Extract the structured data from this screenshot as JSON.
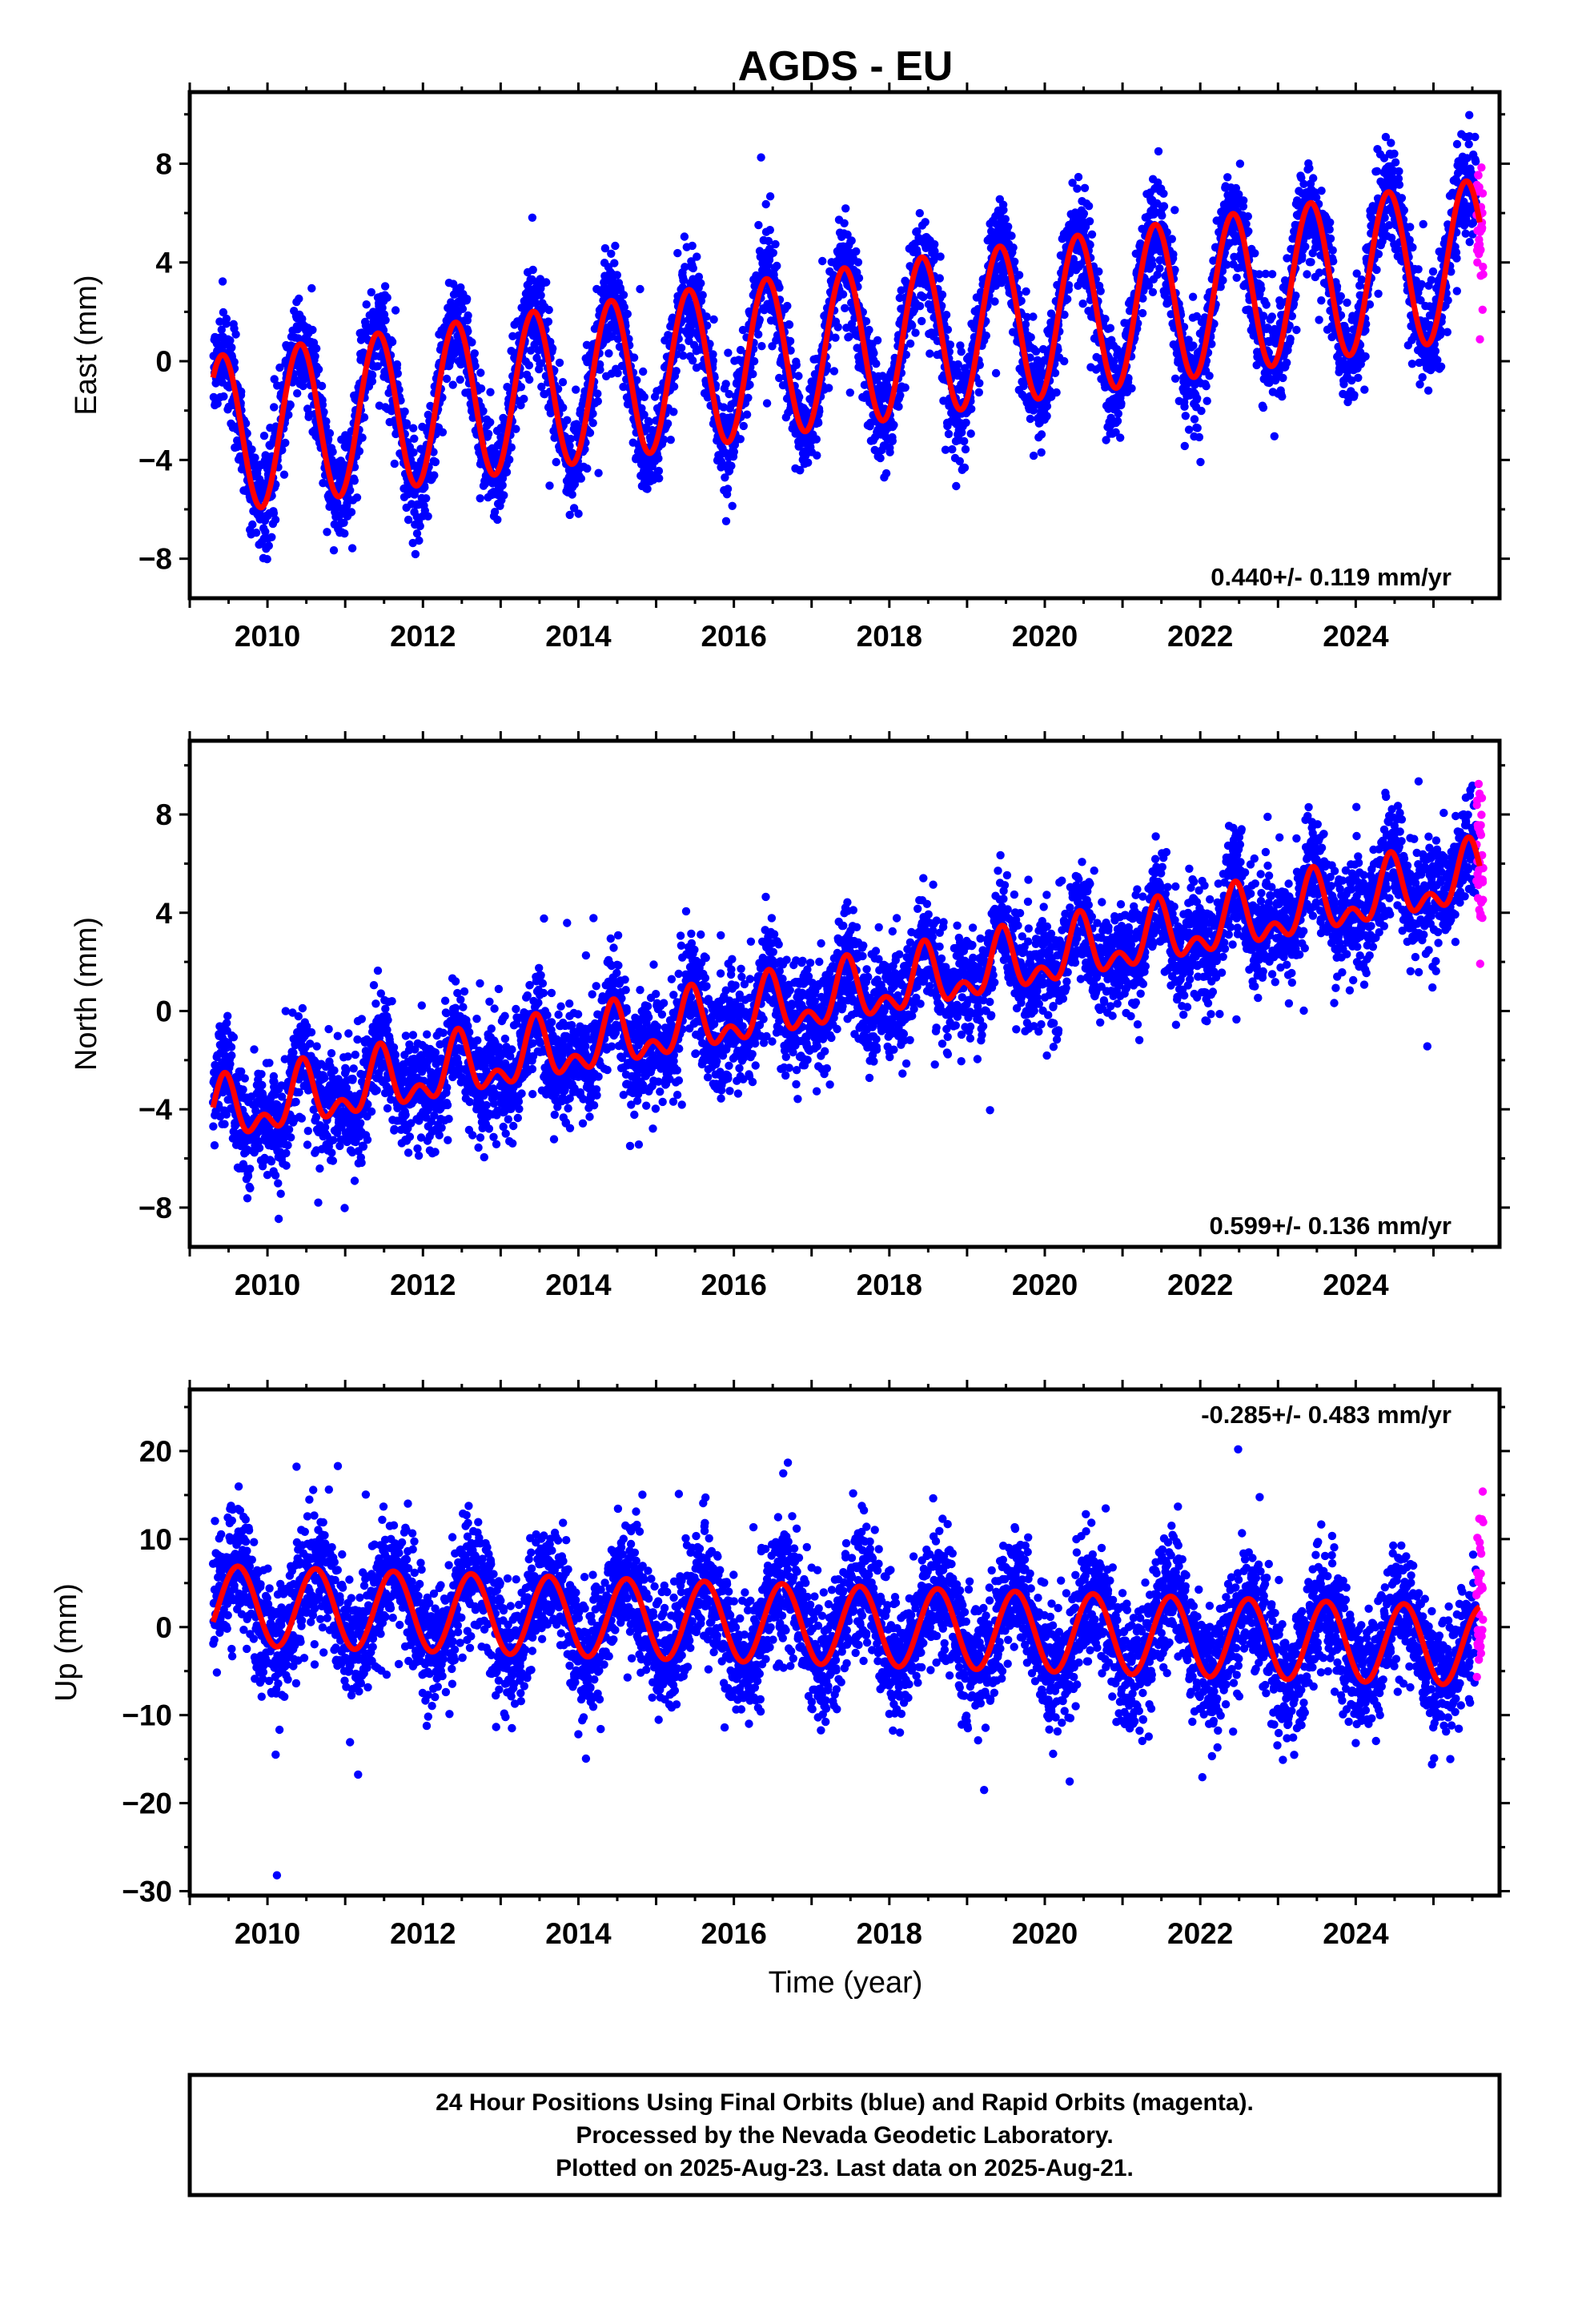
{
  "title": "AGDS - EU",
  "colors": {
    "final_orbits": "#0000ff",
    "rapid_orbits": "#ff00ff",
    "model_fit": "#ff0000",
    "frame": "#000000"
  },
  "x_axis_label": "Time (year)",
  "x_tick_labels": [
    "2010",
    "2012",
    "2014",
    "2016",
    "2018",
    "2020",
    "2022",
    "2024"
  ],
  "footer": {
    "line1": "24 Hour Positions Using Final Orbits (blue) and Rapid Orbits (magenta).",
    "line2": "Processed by the Nevada Geodetic Laboratory.",
    "line3": "Plotted on 2025-Aug-23. Last data on 2025-Aug-21."
  },
  "chart_data": [
    {
      "type": "scatter",
      "panel": "east",
      "ylabel": "East (mm)",
      "xlim": [
        2009.0,
        2025.85
      ],
      "ylim": [
        -9.6,
        10.9
      ],
      "yticks": [
        -8,
        -4,
        0,
        4,
        8
      ],
      "ytick_labels": [
        "−8",
        "−4",
        "0",
        "4",
        "8"
      ],
      "xticks": [
        2010,
        2012,
        2014,
        2016,
        2018,
        2020,
        2022,
        2024
      ],
      "grid": false,
      "rate_text": "0.440+/- 0.119 mm/yr",
      "rate_position": "bottom-right",
      "model": {
        "start_year": 2009.3,
        "end_year": 2025.6,
        "offset_mm": -3.0,
        "trend_mm_per_yr": 0.44,
        "annual_amplitude_mm": 3.2,
        "annual_peak_year_fraction": 0.42
      },
      "data_summary": {
        "first_obs_year": 2009.3,
        "last_final_obs_year": 2025.55,
        "last_rapid_obs_year": 2025.64,
        "scatter_mm": 1.0
      },
      "series": [
        {
          "name": "Final Orbits",
          "color": "#0000ff"
        },
        {
          "name": "Rapid Orbits",
          "color": "#ff00ff"
        },
        {
          "name": "Model",
          "color": "#ff0000"
        }
      ]
    },
    {
      "type": "scatter",
      "panel": "north",
      "ylabel": "North (mm)",
      "xlim": [
        2009.0,
        2025.85
      ],
      "ylim": [
        -9.6,
        11.0
      ],
      "yticks": [
        -8,
        -4,
        0,
        4,
        8
      ],
      "ytick_labels": [
        "−8",
        "−4",
        "0",
        "4",
        "8"
      ],
      "xticks": [
        2010,
        2012,
        2014,
        2016,
        2018,
        2020,
        2022,
        2024
      ],
      "grid": false,
      "rate_text": "0.599+/- 0.136 mm/yr",
      "rate_position": "bottom-right",
      "model": {
        "start_year": 2009.3,
        "end_year": 2025.6,
        "offset_mm": -4.3,
        "trend_mm_per_yr": 0.599,
        "annual_amplitude_mm": 1.0,
        "annual_peak_year_fraction": 0.45,
        "semiannual_amplitude_mm": 0.7,
        "semiannual_peak_year_fraction": 0.45
      },
      "data_summary": {
        "first_obs_year": 2009.3,
        "last_final_obs_year": 2025.55,
        "last_rapid_obs_year": 2025.64,
        "scatter_mm": 1.1
      },
      "series": [
        {
          "name": "Final Orbits",
          "color": "#0000ff"
        },
        {
          "name": "Rapid Orbits",
          "color": "#ff00ff"
        },
        {
          "name": "Model",
          "color": "#ff0000"
        }
      ]
    },
    {
      "type": "scatter",
      "panel": "up",
      "ylabel": "Up (mm)",
      "xlim": [
        2009.0,
        2025.85
      ],
      "ylim": [
        -30.5,
        27.0
      ],
      "yticks": [
        -30,
        -20,
        -10,
        0,
        10,
        20
      ],
      "ytick_labels": [
        "−30",
        "−20",
        "−10",
        "0",
        "10",
        "20"
      ],
      "xticks": [
        2010,
        2012,
        2014,
        2016,
        2018,
        2020,
        2022,
        2024
      ],
      "grid": false,
      "rate_text": "-0.285+/- 0.483 mm/yr",
      "rate_position": "top-right",
      "model": {
        "start_year": 2009.3,
        "end_year": 2025.6,
        "offset_mm": 2.5,
        "trend_mm_per_yr": -0.285,
        "annual_amplitude_mm": 4.5,
        "annual_peak_year_fraction": 0.62
      },
      "data_summary": {
        "first_obs_year": 2009.3,
        "last_final_obs_year": 2025.55,
        "last_rapid_obs_year": 2025.64,
        "scatter_mm": 3.5
      },
      "series": [
        {
          "name": "Final Orbits",
          "color": "#0000ff"
        },
        {
          "name": "Rapid Orbits",
          "color": "#ff00ff"
        },
        {
          "name": "Model",
          "color": "#ff0000"
        }
      ]
    }
  ]
}
